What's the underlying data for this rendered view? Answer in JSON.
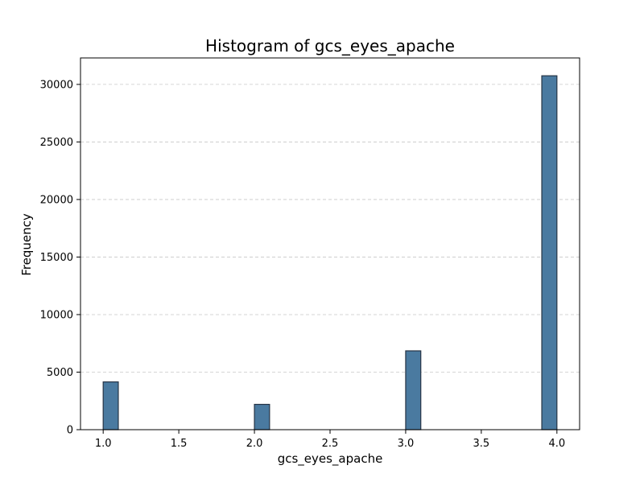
{
  "chart_data": {
    "type": "bar",
    "title": "Histogram of gcs_eyes_apache",
    "xlabel": "gcs_eyes_apache",
    "ylabel": "Frequency",
    "xlim": [
      0.85,
      4.15
    ],
    "ylim": [
      0,
      32300
    ],
    "x_ticks": [
      1.0,
      1.5,
      2.0,
      2.5,
      3.0,
      3.5,
      4.0
    ],
    "x_tick_labels": [
      "1.0",
      "1.5",
      "2.0",
      "2.5",
      "3.0",
      "3.5",
      "4.0"
    ],
    "y_ticks": [
      0,
      5000,
      10000,
      15000,
      20000,
      25000,
      30000
    ],
    "y_tick_labels": [
      "0",
      "5000",
      "10000",
      "15000",
      "20000",
      "25000",
      "30000"
    ],
    "bin_width": 0.1,
    "bins": [
      {
        "x0": 1.0,
        "x1": 1.1,
        "value": 4150
      },
      {
        "x0": 2.0,
        "x1": 2.1,
        "value": 2200
      },
      {
        "x0": 3.0,
        "x1": 3.1,
        "value": 6850
      },
      {
        "x0": 3.9,
        "x1": 4.0,
        "value": 30750
      }
    ],
    "grid": {
      "y": true,
      "x": false,
      "style": "dashed"
    },
    "colors": {
      "bar_fill": "#4a7aa0",
      "bar_edge": "#263445",
      "grid": "#c8c8c8"
    }
  }
}
